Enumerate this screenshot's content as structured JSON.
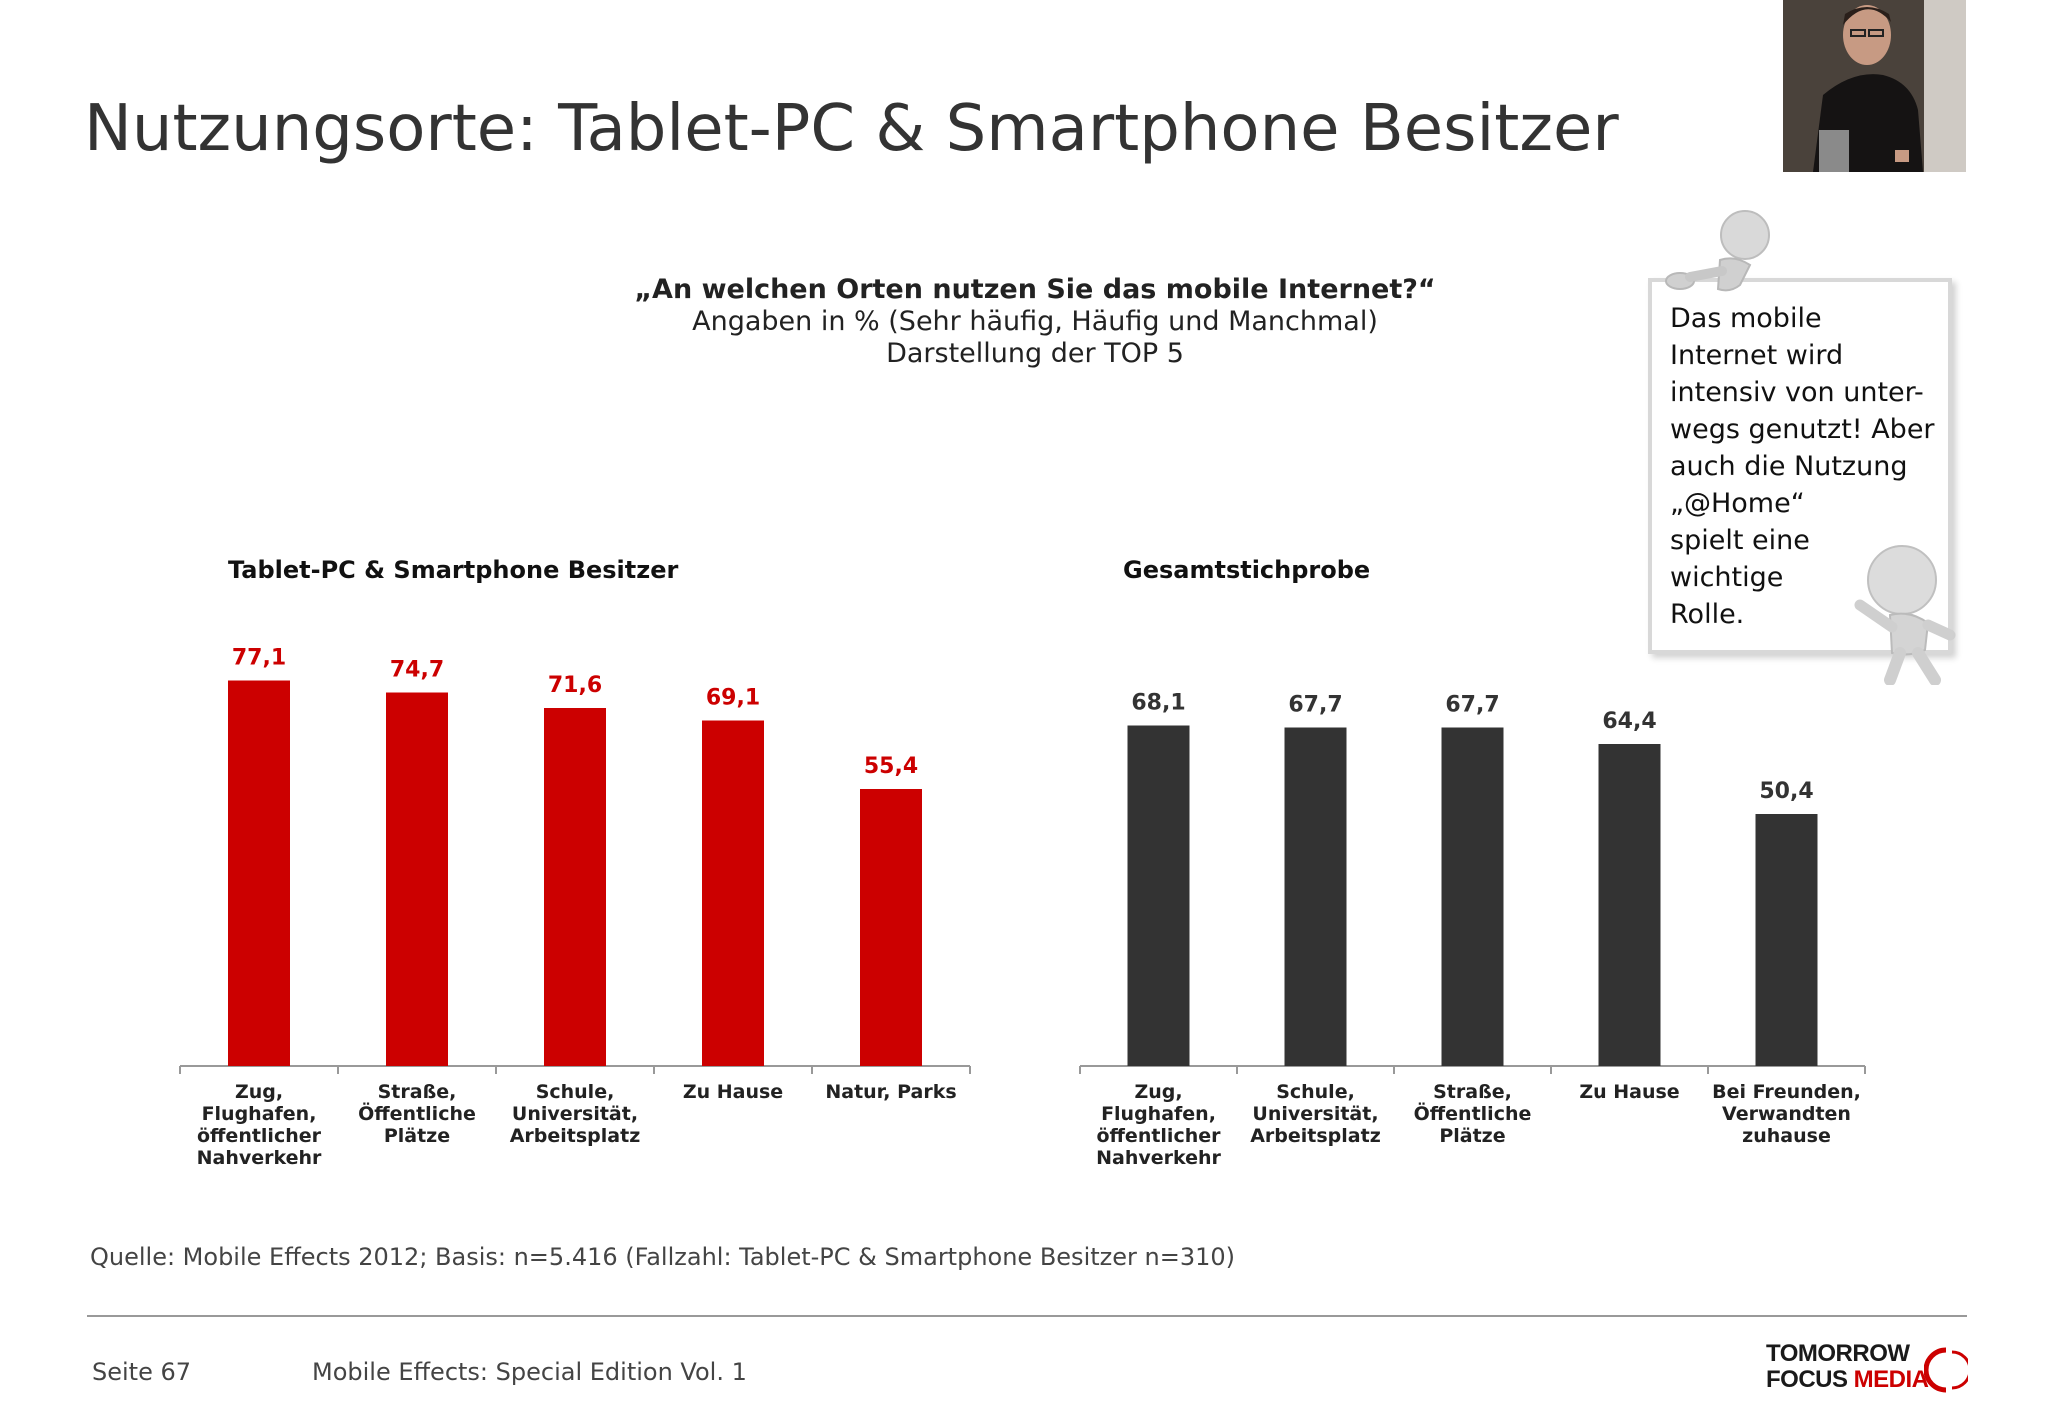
{
  "header": {
    "title": "Nutzungsorte: Tablet-PC & Smartphone Besitzer"
  },
  "question": {
    "line1": "„An welchen Orten nutzen Sie das mobile Internet?“",
    "line2": "Angaben in % (Sehr häufig, Häufig und Manchmal)",
    "line3": "Darstellung der TOP 5"
  },
  "note": {
    "text": "Das mobile\nInternet wird\nintensiv von unter-\nwegs genutzt! Aber\nauch die Nutzung\n„@Home“\nspielt eine\nwichtige\nRolle."
  },
  "chart_data": [
    {
      "type": "bar",
      "title": "Tablet-PC & Smartphone Besitzer",
      "categories": [
        "Zug,\nFlughafen,\nöffentlicher\nNahverkehr",
        "Straße,\nÖffentliche\nPlätze",
        "Schule,\nUniversität,\nArbeitsplatz",
        "Zu Hause",
        "Natur, Parks"
      ],
      "values": [
        77.1,
        74.7,
        71.6,
        69.1,
        55.4
      ],
      "value_labels": [
        "77,1",
        "74,7",
        "71,6",
        "69,1",
        "55,4"
      ],
      "color": "#cc0000",
      "label_color": "#cc0000",
      "ylim": [
        0,
        100
      ]
    },
    {
      "type": "bar",
      "title": "Gesamtstichprobe",
      "categories": [
        "Zug,\nFlughafen,\nöffentlicher\nNahverkehr",
        "Schule,\nUniversität,\nArbeitsplatz",
        "Straße,\nÖffentliche\nPlätze",
        "Zu Hause",
        "Bei Freunden,\nVerwandten\nzuhause"
      ],
      "values": [
        68.1,
        67.7,
        67.7,
        64.4,
        50.4
      ],
      "value_labels": [
        "68,1",
        "67,7",
        "67,7",
        "64,4",
        "50,4"
      ],
      "color": "#333333",
      "label_color": "#333333",
      "ylim": [
        0,
        100
      ]
    }
  ],
  "source": "Quelle: Mobile Effects 2012; Basis: n=5.416 (Fallzahl: Tablet-PC & Smartphone Besitzer n=310)",
  "footer": {
    "page": "Seite 67",
    "publication": "Mobile Effects: Special Edition Vol. 1"
  },
  "logo": {
    "line1": "TOMORROW",
    "line2a": "FOCUS",
    "line2b": "MEDIA"
  }
}
